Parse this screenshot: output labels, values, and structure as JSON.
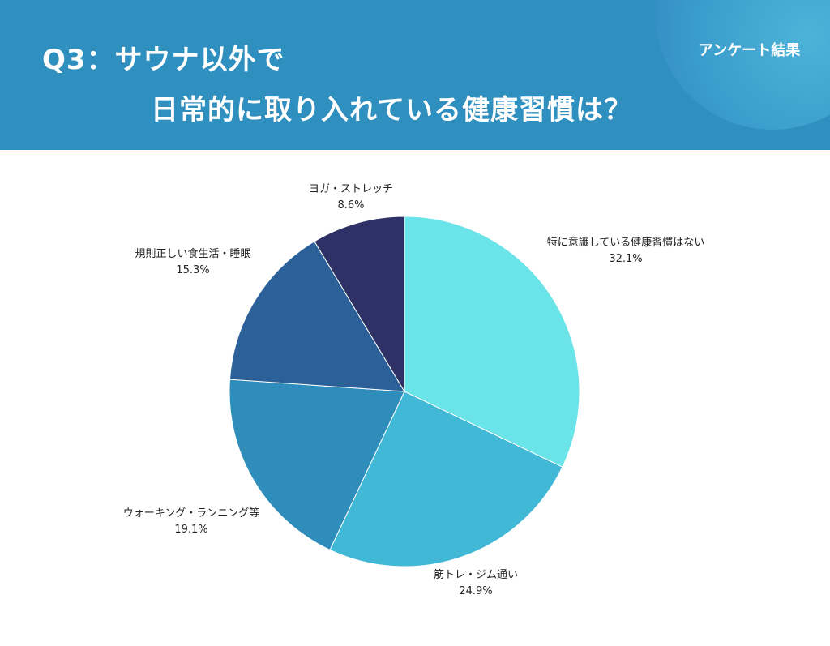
{
  "header": {
    "title_line1": "Q3：サウナ以外で",
    "title_line2": "日常的に取り入れている健康習慣は？",
    "badge": "アンケート結果",
    "color": "#2f8fbf"
  },
  "chart_data": {
    "type": "pie",
    "title": "",
    "start_angle": "12 o'clock, clockwise",
    "slices": [
      {
        "label": "特に意識している健康習慣はない",
        "value": 32.1,
        "value_label": "32.1%",
        "color": "#6ae4e8"
      },
      {
        "label": "筋トレ・ジム通い",
        "value": 24.9,
        "value_label": "24.9%",
        "color": "#42b8d7"
      },
      {
        "label": "ウォーキング・ランニング等",
        "value": 19.1,
        "value_label": "19.1%",
        "color": "#2e8dbb"
      },
      {
        "label": "規則正しい食生活・睡眠",
        "value": 15.3,
        "value_label": "15.3%",
        "color": "#2c6098"
      },
      {
        "label": "ヨガ・ストレッチ",
        "value": 8.6,
        "value_label": "8.6%",
        "color": "#2d3165"
      }
    ]
  }
}
